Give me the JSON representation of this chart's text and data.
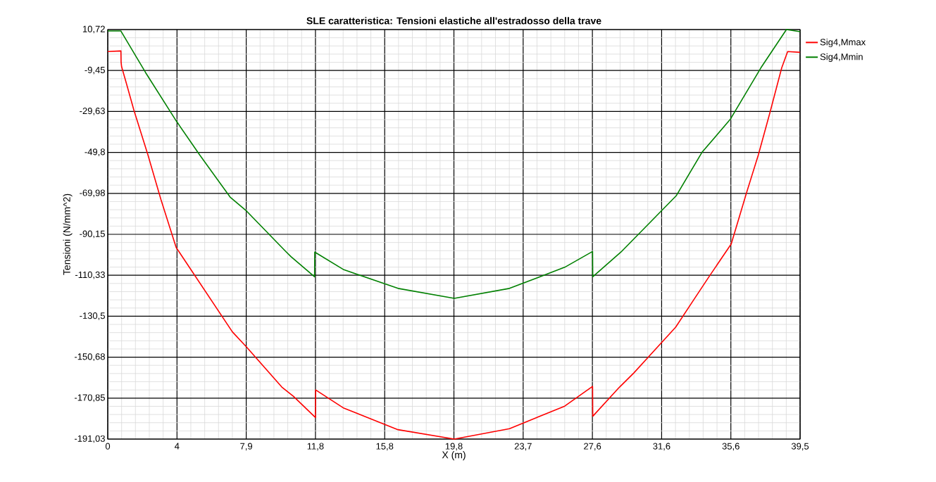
{
  "chart_data": {
    "type": "line",
    "title": "SLE caratteristica: Tensioni elastiche all'estradosso della trave",
    "xlabel": "X (m)",
    "ylabel": "Tensioni (N/mm^2)",
    "xlim": [
      0,
      39.5
    ],
    "ylim": [
      -191.03,
      10.72
    ],
    "xticks": [
      0,
      {
        "value": 3.95,
        "label": "4"
      },
      {
        "value": 7.9,
        "label": "7,9"
      },
      {
        "value": 11.85,
        "label": "11,8"
      },
      {
        "value": 15.8,
        "label": "15,8"
      },
      {
        "value": 19.75,
        "label": "19,8"
      },
      {
        "value": 23.7,
        "label": "23,7"
      },
      {
        "value": 27.65,
        "label": "27,6"
      },
      {
        "value": 31.6,
        "label": "31,6"
      },
      {
        "value": 35.55,
        "label": "35,6"
      },
      {
        "value": 39.5,
        "label": "39,5"
      }
    ],
    "yticks": [
      {
        "value": 10.72,
        "label": "10,72"
      },
      {
        "value": -9.455,
        "label": "-9,45"
      },
      {
        "value": -29.63,
        "label": "-29,63"
      },
      {
        "value": -49.805,
        "label": "-49,8"
      },
      {
        "value": -69.98,
        "label": "-69,98"
      },
      {
        "value": -90.155,
        "label": "-90,15"
      },
      {
        "value": -110.33,
        "label": "-110,33"
      },
      {
        "value": -130.505,
        "label": "-130,5"
      },
      {
        "value": -150.68,
        "label": "-150,68"
      },
      {
        "value": -170.855,
        "label": "-170,85"
      },
      {
        "value": -191.03,
        "label": "-191,03"
      }
    ],
    "grid": true,
    "legend": "right",
    "series": [
      {
        "name": "Sig4,Mmax",
        "color": "#ff0000",
        "x": [
          0,
          0.75,
          0.76,
          0.79,
          1.08,
          1.49,
          2.29,
          3.03,
          3.9,
          7.11,
          7.92,
          9.93,
          10.6,
          11.85,
          11.86,
          13.47,
          16.56,
          19.77,
          22.92,
          26.07,
          27.66,
          27.67,
          29.2,
          30.02,
          32.4,
          33.37,
          34.3,
          35.57,
          36.45,
          37.12,
          37.78,
          38.45,
          38.79,
          39.5
        ],
        "values": [
          -0.1,
          0.2,
          -5.3,
          -7.6,
          -16.3,
          -29.0,
          -51.0,
          -72.9,
          -96.6,
          -138.2,
          -145.7,
          -165.4,
          -170.0,
          -180.4,
          -166.8,
          -175.8,
          -186.4,
          -191.0,
          -185.9,
          -174.8,
          -165.1,
          -179.8,
          -165.4,
          -158.4,
          -135.9,
          -123.2,
          -111.1,
          -94.9,
          -69.5,
          -51.0,
          -30.2,
          -8.2,
          -0.1,
          -0.5
        ]
      },
      {
        "name": "Sig4,Mmin",
        "color": "#008000",
        "x": [
          0,
          0.75,
          2.16,
          3.9,
          5.24,
          6.98,
          7.92,
          10.19,
          10.46,
          11.8,
          11.81,
          13.47,
          16.56,
          19.77,
          22.92,
          26.07,
          27.66,
          27.67,
          29.28,
          32.43,
          33.9,
          35.51,
          37.26,
          38.72,
          39.5
        ],
        "values": [
          10.0,
          10.0,
          -10.5,
          -34.2,
          -51.0,
          -71.8,
          -78.7,
          -98.9,
          -101.2,
          -111.1,
          -98.9,
          -107.6,
          -116.8,
          -121.7,
          -116.8,
          -106.4,
          -98.6,
          -111.1,
          -98.9,
          -71.2,
          -49.8,
          -33.6,
          -8.2,
          10.7,
          9.7
        ]
      }
    ]
  }
}
